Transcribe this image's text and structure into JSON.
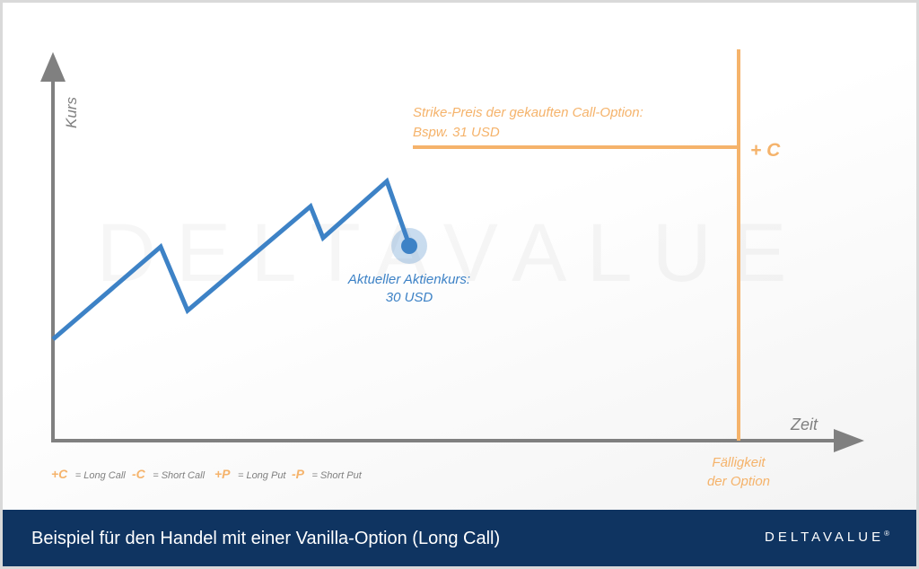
{
  "diagram": {
    "y_axis_label": "Kurs",
    "x_axis_label": "Zeit",
    "watermark": "DELTAVALUE",
    "strike_label_line1": "Strike-Preis der gekauften Call-Option:",
    "strike_label_line2": "Bspw. 31 USD",
    "position_marker": "+ C",
    "current_price_line1": "Aktueller Aktienkurs:",
    "current_price_line2": "30 USD",
    "expiry_line1": "Fälligkeit",
    "expiry_line2": "der Option",
    "colors": {
      "price_line": "#3d82c6",
      "strike": "#f5b36b",
      "axis": "#808080",
      "footer_bg": "#0f3461"
    }
  },
  "legend": [
    {
      "symbol": "+C",
      "text": "= Long Call"
    },
    {
      "symbol": "-C",
      "text": "= Short Call"
    },
    {
      "symbol": "+P",
      "text": "= Long Put"
    },
    {
      "symbol": "-P",
      "text": "= Short Put"
    }
  ],
  "footer": {
    "title": "Beispiel für den Handel mit einer Vanilla-Option (Long Call)",
    "logo": "DELTAVALUE"
  }
}
